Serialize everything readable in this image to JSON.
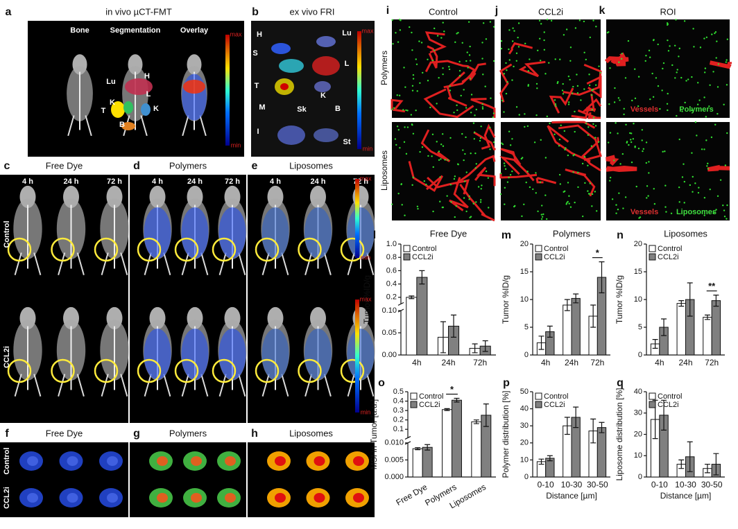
{
  "in_vivo": {
    "letter": "a",
    "title": "in vivo µCT-FMT",
    "columns": [
      "Bone",
      "Segmentation",
      "Overlay"
    ],
    "organs": [
      "Lu",
      "H",
      "L",
      "T",
      "K",
      "K",
      "B"
    ],
    "scale": [
      "max",
      "min"
    ]
  },
  "ex_vivo": {
    "letter": "b",
    "title": "ex vivo FRI",
    "organs": [
      "H",
      "Lu",
      "S",
      "L",
      "T",
      "K",
      "M",
      "Sk",
      "B",
      "I",
      "St"
    ],
    "scale": [
      "max",
      "min"
    ]
  },
  "whole_body": {
    "letters": [
      "c",
      "d",
      "e"
    ],
    "titles": [
      "Free Dye",
      "Polymers",
      "Liposomes"
    ],
    "times": [
      "4 h",
      "24 h",
      "72 h"
    ],
    "rows": [
      "Control",
      "CCL2i"
    ],
    "scale": [
      "max",
      "min"
    ]
  },
  "tumors": {
    "letters": [
      "f",
      "g",
      "h"
    ],
    "titles": [
      "Free Dye",
      "Polymers",
      "Liposomes"
    ],
    "rows": [
      "Control",
      "CCL2i"
    ]
  },
  "microscopy": {
    "letters": [
      "i",
      "j",
      "k"
    ],
    "titles": [
      "Control",
      "CCL2i",
      "ROI"
    ],
    "rows": [
      "Polymers",
      "Liposomes"
    ],
    "legends": [
      [
        "Vessels",
        "Polymers"
      ],
      [
        "Vessels",
        "Liposomes"
      ]
    ]
  },
  "chart_data": [
    {
      "type": "bar",
      "letter": "l",
      "title": "Free Dye",
      "ylabel": "Tumor %ID/g",
      "categories": [
        "4h",
        "24h",
        "72h"
      ],
      "series": [
        {
          "name": "Control",
          "color": "#ffffff",
          "values": [
            0.2,
            0.04,
            0.015
          ],
          "errors": [
            0.02,
            0.035,
            0.01
          ]
        },
        {
          "name": "CCL2i",
          "color": "#808080",
          "values": [
            0.5,
            0.065,
            0.02
          ],
          "errors": [
            0.1,
            0.025,
            0.012
          ]
        }
      ],
      "ylim": [
        0,
        1
      ],
      "ybreak": 0.1,
      "yticks": [
        {
          "value": 0,
          "label": "0.00"
        },
        0.05,
        {
          "value": 0.1,
          "label": "0.10"
        },
        0.2,
        0.4,
        0.6,
        0.8,
        {
          "value": 1,
          "label": "1.0"
        }
      ]
    },
    {
      "type": "bar",
      "letter": "m",
      "title": "Polymers",
      "ylabel": "Tumor %ID/g",
      "categories": [
        "4h",
        "24h",
        "72h"
      ],
      "series": [
        {
          "name": "Control",
          "color": "#ffffff",
          "values": [
            2.2,
            9,
            7
          ],
          "errors": [
            1.2,
            1,
            2
          ]
        },
        {
          "name": "CCL2i",
          "color": "#808080",
          "values": [
            4.2,
            10.2,
            14
          ],
          "errors": [
            1,
            0.8,
            2.8
          ]
        }
      ],
      "ylim": [
        0,
        20
      ],
      "yticks": [
        0,
        5,
        10,
        15,
        20
      ],
      "annotations": [
        {
          "text": "*",
          "x": "72h"
        }
      ]
    },
    {
      "type": "bar",
      "letter": "n",
      "title": "Liposomes",
      "ylabel": "Tumor %ID/g",
      "categories": [
        "4h",
        "24h",
        "72h"
      ],
      "series": [
        {
          "name": "Control",
          "color": "#ffffff",
          "values": [
            2,
            9.3,
            6.8
          ],
          "errors": [
            0.8,
            0.5,
            0.4
          ]
        },
        {
          "name": "CCL2i",
          "color": "#808080",
          "values": [
            5,
            10,
            9.8
          ],
          "errors": [
            1.5,
            3,
            1
          ]
        }
      ],
      "ylim": [
        0,
        20
      ],
      "yticks": [
        0,
        5,
        10,
        15,
        20
      ],
      "annotations": [
        {
          "text": "**",
          "x": "72h"
        }
      ]
    },
    {
      "type": "bar",
      "letter": "o",
      "ylabel": "MSI in Tumor [a.u.]",
      "categories": [
        "Free Dye",
        "Polymers",
        "Liposomes"
      ],
      "series": [
        {
          "name": "Control",
          "color": "#ffffff",
          "values": [
            0.0083,
            0.31,
            0.18
          ],
          "errors": [
            0.0003,
            0.01,
            0.02
          ]
        },
        {
          "name": "CCL2i",
          "color": "#808080",
          "values": [
            0.0087,
            0.41,
            0.25
          ],
          "errors": [
            0.0008,
            0.02,
            0.12
          ]
        }
      ],
      "ylim": [
        0,
        0.5
      ],
      "ybreak": 0.01,
      "yticks": [
        {
          "value": 0,
          "label": "0.000"
        },
        0.005,
        {
          "value": 0.01,
          "label": "0.010"
        },
        0.1,
        0.2,
        0.3,
        0.4,
        0.5
      ],
      "annotations": [
        {
          "text": "*",
          "x": "Polymers"
        }
      ]
    },
    {
      "type": "bar",
      "letter": "p",
      "ylabel": "Polymer distribution [%]",
      "xlabel": "Distance [µm]",
      "categories": [
        "0-10",
        "10-30",
        "30-50"
      ],
      "series": [
        {
          "name": "Control",
          "color": "#ffffff",
          "values": [
            9,
            30,
            27
          ],
          "errors": [
            1.5,
            5,
            7
          ]
        },
        {
          "name": "CCL2i",
          "color": "#808080",
          "values": [
            11,
            35,
            29
          ],
          "errors": [
            1.5,
            6,
            3
          ]
        }
      ],
      "ylim": [
        0,
        50
      ],
      "yticks": [
        0,
        10,
        20,
        30,
        40,
        50
      ]
    },
    {
      "type": "bar",
      "letter": "q",
      "ylabel": "Liposome distribution [%]",
      "xlabel": "Distance [µm]",
      "categories": [
        "0-10",
        "10-30",
        "30-50"
      ],
      "series": [
        {
          "name": "Control",
          "color": "#ffffff",
          "values": [
            27,
            6,
            4
          ],
          "errors": [
            9,
            2,
            2
          ]
        },
        {
          "name": "CCL2i",
          "color": "#808080",
          "values": [
            29,
            9.5,
            6
          ],
          "errors": [
            7,
            7,
            5
          ]
        }
      ],
      "ylim": [
        0,
        40
      ],
      "yticks": [
        0,
        10,
        20,
        30,
        40
      ]
    }
  ]
}
